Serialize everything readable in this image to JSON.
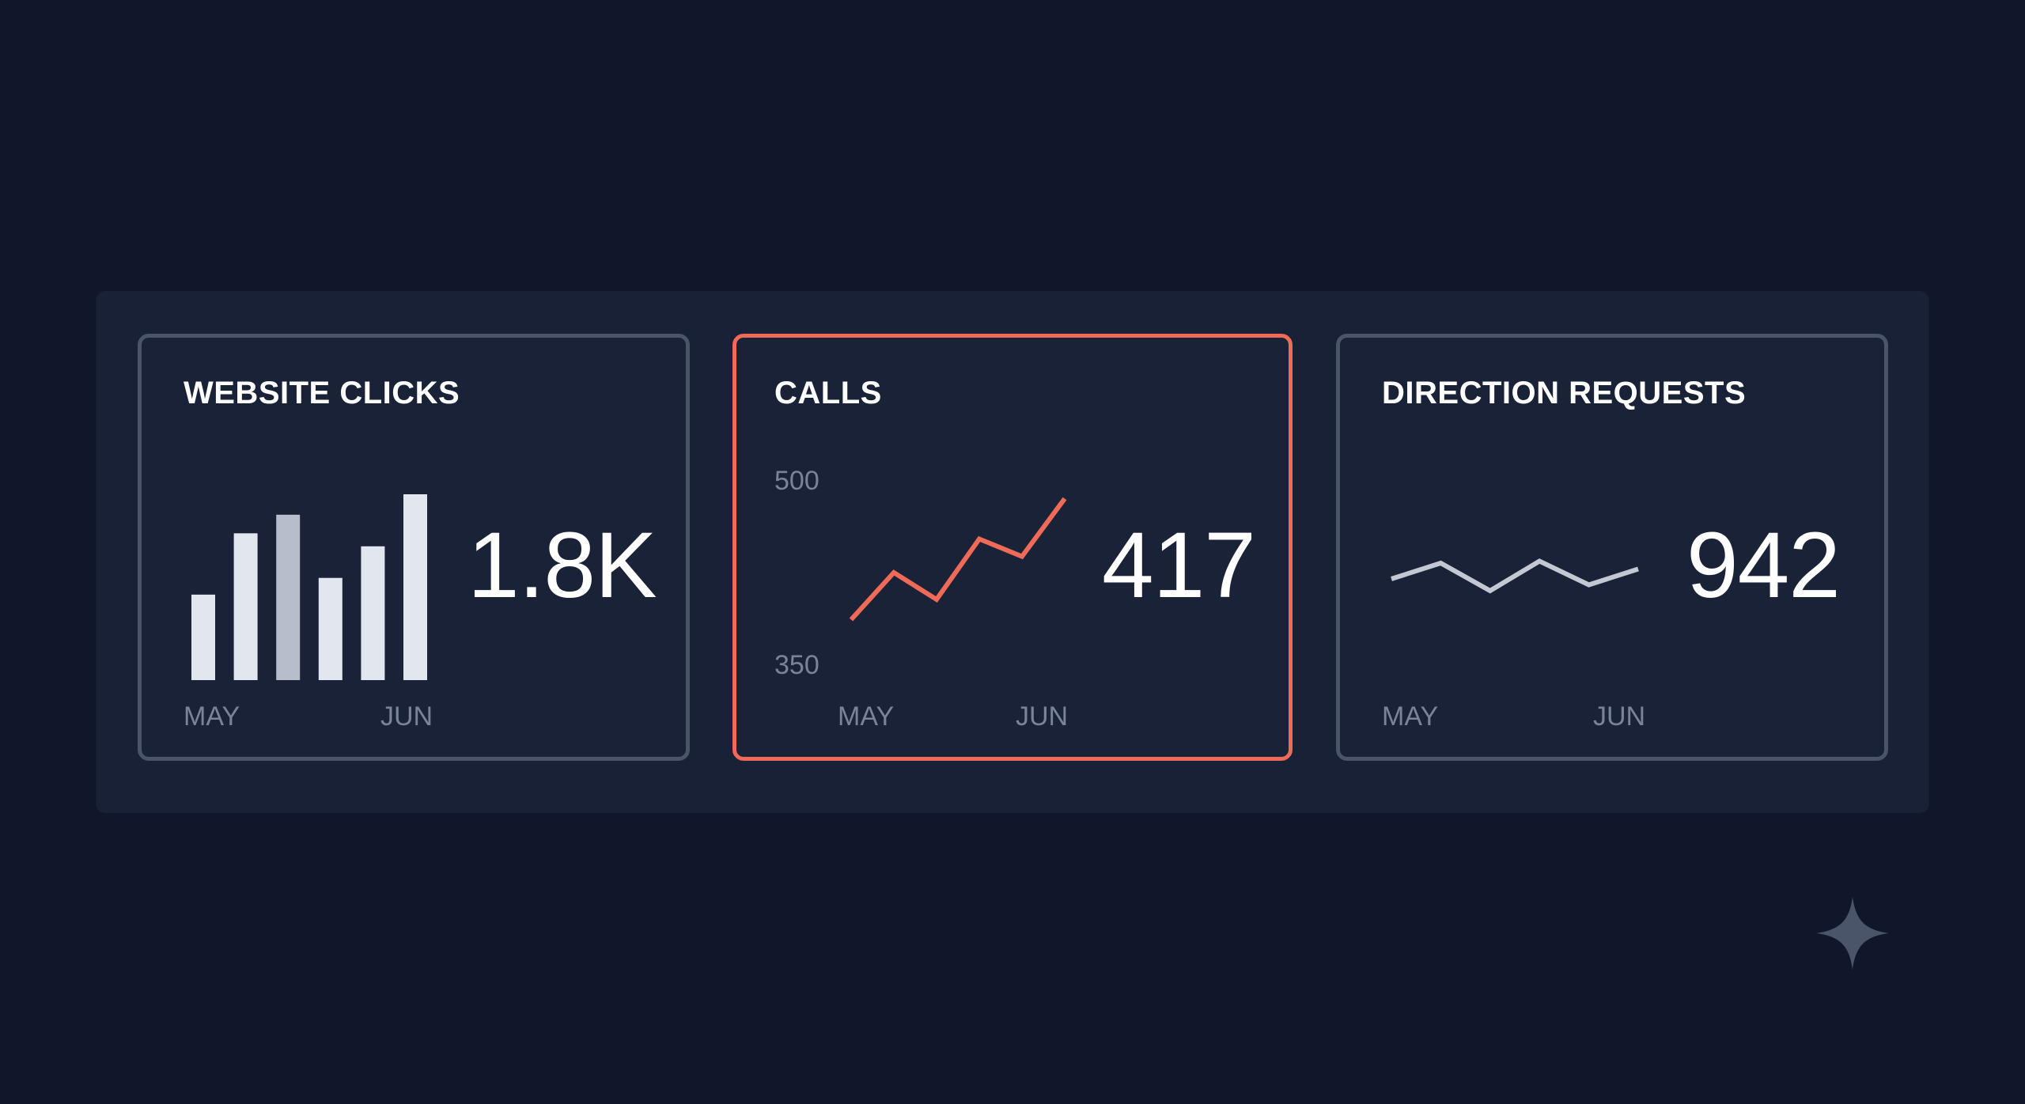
{
  "cards": [
    {
      "title": "WEBSITE CLICKS",
      "value": "1.8K",
      "chart_data": {
        "type": "bar",
        "values": [
          0.46,
          0.79,
          0.89,
          0.55,
          0.72,
          1.0
        ],
        "x_tick_labels": [
          "MAY",
          "JUN"
        ],
        "bar_colors": [
          "#e2e6ee",
          "#e2e6ee",
          "#b8bdcb",
          "#e2e6ee",
          "#e2e6ee",
          "#e2e6ee"
        ]
      }
    },
    {
      "title": "CALLS",
      "value": "417",
      "highlighted": true,
      "accent_color": "#ef6a57",
      "chart_data": {
        "type": "line",
        "values": [
          360,
          395,
          375,
          420,
          407,
          450
        ],
        "ylim": [
          350,
          500
        ],
        "y_tick_labels": [
          "500",
          "350"
        ],
        "x_tick_labels": [
          "MAY",
          "JUN"
        ],
        "color": "#ef6a57"
      }
    },
    {
      "title": "DIRECTION REQUESTS",
      "value": "942",
      "chart_data": {
        "type": "line",
        "values": [
          0.3,
          0.7,
          0.0,
          0.75,
          0.15,
          0.55
        ],
        "x_tick_labels": [
          "MAY",
          "JUN"
        ],
        "color": "#c3c8d3"
      }
    }
  ],
  "decoration": {
    "sparkle_icon": "four-point-star-icon",
    "sparkle_color": "#4a556a"
  }
}
